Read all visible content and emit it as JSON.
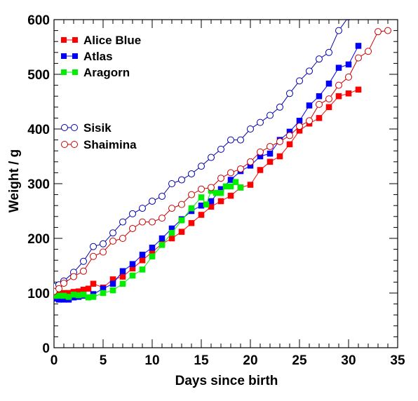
{
  "chart_data": {
    "type": "scatter",
    "title": "",
    "xlabel": "Days since birth",
    "ylabel": "Weight / g",
    "xlim": [
      0,
      35
    ],
    "ylim": [
      0,
      600
    ],
    "xticks": [
      0,
      5,
      10,
      15,
      20,
      25,
      30,
      35
    ],
    "yticks": [
      0,
      100,
      200,
      300,
      400,
      500,
      600
    ],
    "x_tick_labels": [
      "0",
      "5",
      "10",
      "15",
      "20",
      "25",
      "30",
      "35"
    ],
    "y_tick_labels": [
      "0",
      "100",
      "200",
      "300",
      "400",
      "500",
      "600"
    ],
    "grid": false,
    "legend_position": "top-left",
    "series": [
      {
        "name": "Alice Blue",
        "color": "#ff0000",
        "marker": "filled-square",
        "x": [
          0,
          0.5,
          1,
          1.5,
          2,
          2.5,
          3,
          3.5,
          4,
          5,
          6,
          7,
          8,
          9,
          10,
          11,
          12,
          13,
          14,
          15,
          16,
          17,
          18,
          19,
          20,
          21,
          22,
          23,
          24,
          25,
          26,
          27,
          28,
          29,
          30,
          31
        ],
        "y": [
          105,
          102,
          100,
          100,
          102,
          103,
          106,
          108,
          117,
          110,
          125,
          130,
          145,
          160,
          175,
          190,
          200,
          212,
          228,
          243,
          258,
          268,
          278,
          293,
          298,
          325,
          340,
          350,
          372,
          397,
          410,
          420,
          440,
          460,
          465,
          472
        ]
      },
      {
        "name": "Atlas",
        "color": "#0000ff",
        "marker": "filled-square",
        "x": [
          0,
          0.5,
          1,
          1.5,
          2,
          2.5,
          3,
          4,
          5,
          6,
          7,
          8,
          9,
          10,
          11,
          12,
          13,
          14,
          15,
          16,
          17,
          18,
          19,
          20,
          21,
          22,
          23,
          24,
          25,
          26,
          27,
          28,
          29,
          30,
          31
        ],
        "y": [
          90,
          88,
          88,
          88,
          92,
          93,
          95,
          98,
          108,
          117,
          140,
          153,
          170,
          183,
          200,
          218,
          235,
          250,
          260,
          268,
          290,
          307,
          323,
          333,
          350,
          355,
          380,
          395,
          415,
          443,
          460,
          483,
          512,
          518,
          552
        ]
      },
      {
        "name": "Aragorn",
        "color": "#00ee00",
        "marker": "filled-square",
        "x": [
          0,
          0.5,
          1,
          1.5,
          2,
          2.5,
          3,
          3.5,
          4,
          5,
          6,
          7,
          8,
          9,
          10,
          11,
          12,
          13,
          14,
          15,
          15.5,
          16,
          16.5,
          17,
          17.5,
          18,
          18.5,
          19
        ],
        "y": [
          95,
          95,
          95,
          93,
          97,
          96,
          97,
          92,
          93,
          100,
          105,
          117,
          132,
          143,
          167,
          188,
          210,
          233,
          255,
          275,
          262,
          287,
          283,
          283,
          295,
          295,
          303,
          293
        ]
      },
      {
        "name": "Sisik",
        "color": "#0000aa",
        "marker": "open-circle",
        "x": [
          0,
          0.5,
          1,
          2,
          3,
          4,
          5,
          6,
          7,
          8,
          9,
          10,
          11,
          12,
          13,
          14,
          15,
          16,
          17,
          18,
          19,
          20,
          21,
          22,
          23,
          24,
          25,
          26,
          27,
          28,
          29,
          30
        ],
        "y": [
          112,
          115,
          122,
          138,
          158,
          185,
          190,
          210,
          230,
          245,
          255,
          268,
          277,
          300,
          307,
          318,
          332,
          348,
          363,
          380,
          380,
          400,
          412,
          425,
          440,
          465,
          488,
          506,
          528,
          540,
          580,
          605
        ]
      },
      {
        "name": "Shaimina",
        "color": "#cc0000",
        "marker": "open-circle",
        "x": [
          0,
          0.5,
          1,
          2,
          3,
          4,
          5,
          6,
          7,
          8,
          9,
          10,
          11,
          12,
          13,
          14,
          15,
          16,
          17,
          18,
          19,
          20,
          21,
          22,
          23,
          24,
          25,
          26,
          27,
          28,
          29,
          30,
          31,
          32,
          33,
          34
        ],
        "y": [
          103,
          108,
          118,
          130,
          140,
          167,
          175,
          195,
          200,
          218,
          230,
          230,
          237,
          255,
          262,
          280,
          290,
          293,
          310,
          320,
          327,
          340,
          358,
          368,
          377,
          388,
          405,
          415,
          445,
          455,
          480,
          495,
          530,
          542,
          578,
          580
        ]
      }
    ]
  }
}
